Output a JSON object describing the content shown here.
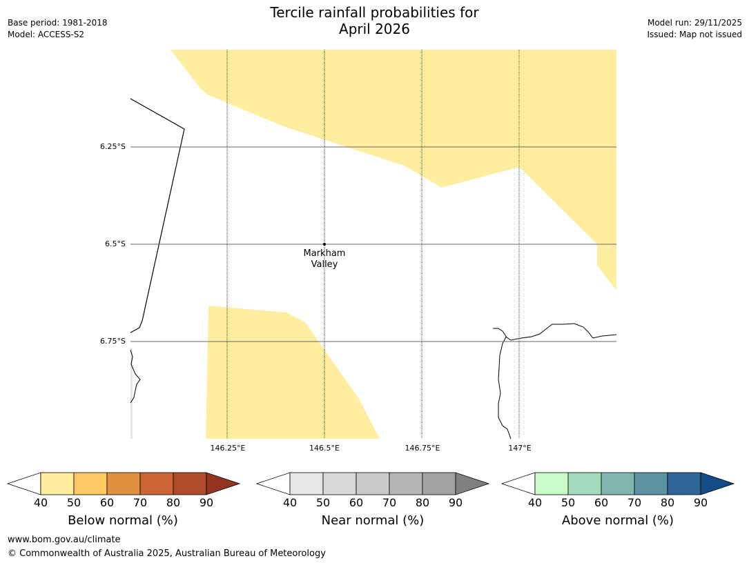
{
  "title": {
    "line1": "Tercile rainfall probabilities for",
    "line2": "April 2026"
  },
  "meta_left": {
    "base_period": "Base period: 1981-2018",
    "model": "Model: ACCESS-S2"
  },
  "meta_right": {
    "model_run": "Model run: 29/11/2025",
    "issued": "Issued: Map not issued"
  },
  "map": {
    "latitude_labels": [
      "6.25°S",
      "6.5°S",
      "6.75°S"
    ],
    "longitude_labels": [
      "146.25°E",
      "146.5°E",
      "146.75°E",
      "147°E"
    ],
    "place": {
      "line1": "Markham",
      "line2": "Valley"
    },
    "colors": {
      "below_40_50": "#ffeda0",
      "gridline": "#555555"
    }
  },
  "colorbars": [
    {
      "title": "Below normal (%)",
      "ticks": [
        "40",
        "50",
        "60",
        "70",
        "80",
        "90"
      ],
      "colors": [
        "#ffeda0",
        "#fec965",
        "#e0913f",
        "#cc6535",
        "#b04c29",
        "#923420"
      ]
    },
    {
      "title": "Near normal (%)",
      "ticks": [
        "40",
        "50",
        "60",
        "70",
        "80",
        "90"
      ],
      "colors": [
        "#e6e6e6",
        "#d8d8d8",
        "#c9c9c9",
        "#b5b5b5",
        "#a2a2a2",
        "#808080"
      ]
    },
    {
      "title": "Above normal (%)",
      "ticks": [
        "40",
        "50",
        "60",
        "70",
        "80",
        "90"
      ],
      "colors": [
        "#c9fbc9",
        "#a4dabc",
        "#7fb7b0",
        "#5b93a3",
        "#2f6599",
        "#134b87"
      ]
    }
  ],
  "footer": {
    "url": "www.bom.gov.au/climate",
    "copyright": "© Commonwealth of Australia 2025, Australian Bureau of Meteorology"
  }
}
